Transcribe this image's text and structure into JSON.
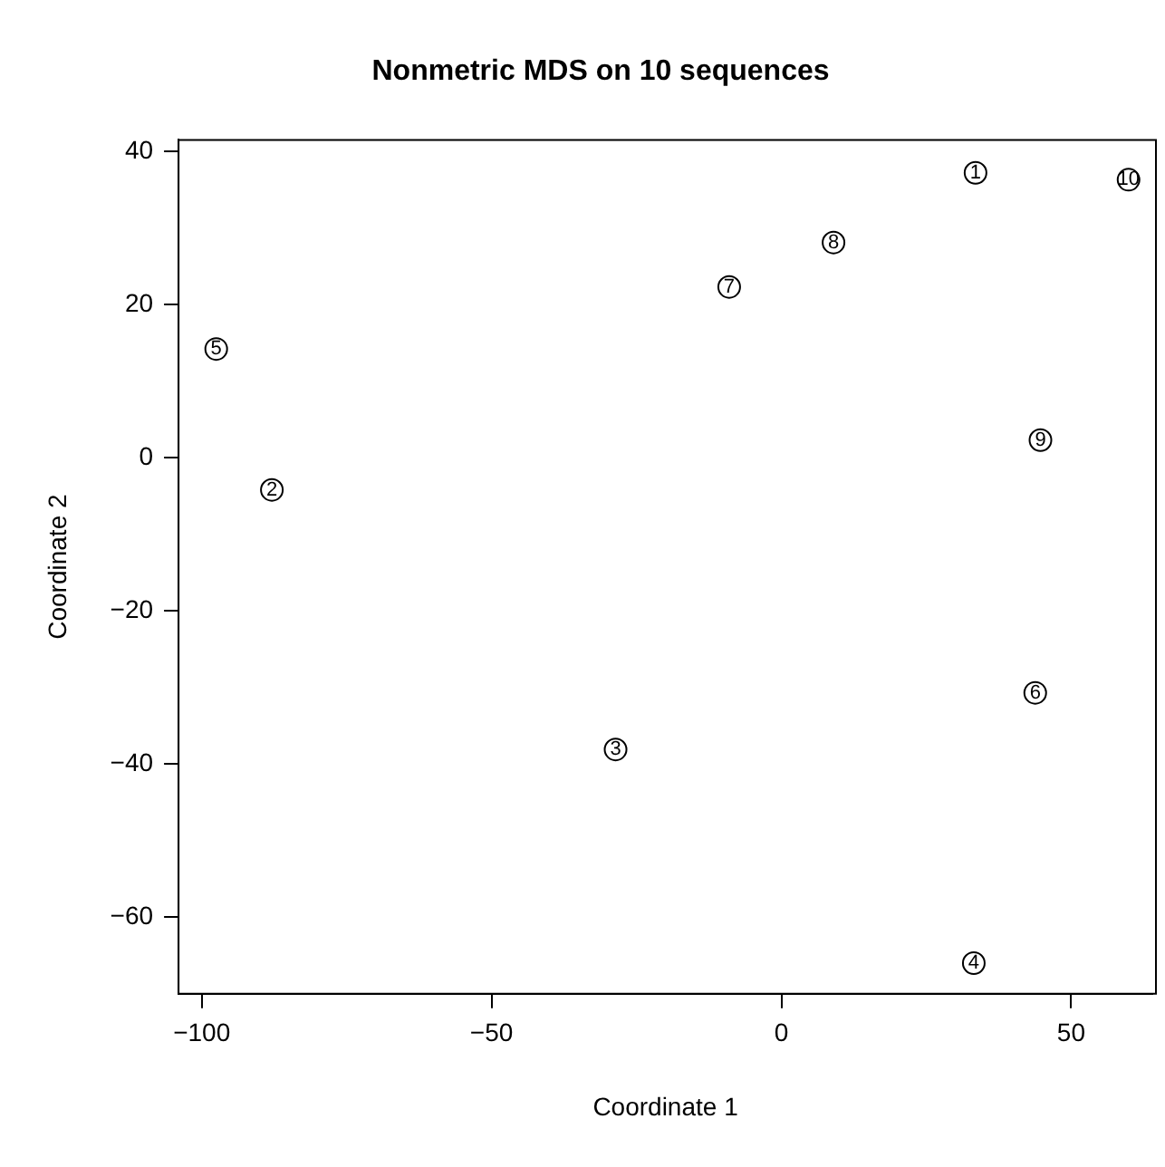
{
  "chart_data": {
    "type": "scatter",
    "title": "Nonmetric MDS on 10 sequences",
    "xlabel": "Coordinate 1",
    "ylabel": "Coordinate 2",
    "x": [
      33.5,
      -87.9,
      -28.6,
      33.2,
      -97.5,
      43.8,
      -9.0,
      9.0,
      44.7,
      59.9
    ],
    "series": [
      {
        "color": "#000000",
        "values": [
          37.2,
          -4.2,
          -38.1,
          -66.0,
          14.2,
          -30.7,
          22.3,
          28.1,
          2.3,
          36.3
        ]
      }
    ],
    "xlim": [
      -104,
      64
    ],
    "xticks": [
      -100,
      -50,
      0,
      50
    ],
    "ylim": [
      -70,
      41.5
    ],
    "yticks": [
      -60,
      -40,
      -20,
      0,
      20,
      40
    ],
    "marker": "circle",
    "grid": false,
    "legend": false,
    "annotations": [
      {
        "text": "1",
        "x": 33.5,
        "y": 37.2
      },
      {
        "text": "2",
        "x": -87.9,
        "y": -4.2
      },
      {
        "text": "3",
        "x": -28.6,
        "y": -38.1
      },
      {
        "text": "4",
        "x": 33.2,
        "y": -66.0
      },
      {
        "text": "5",
        "x": -97.5,
        "y": 14.2
      },
      {
        "text": "6",
        "x": 43.8,
        "y": -30.7
      },
      {
        "text": "7",
        "x": -9.0,
        "y": 22.3
      },
      {
        "text": "8",
        "x": 9.0,
        "y": 28.1
      },
      {
        "text": "9",
        "x": 44.7,
        "y": 2.3
      },
      {
        "text": "10",
        "x": 59.9,
        "y": 36.3
      }
    ]
  }
}
